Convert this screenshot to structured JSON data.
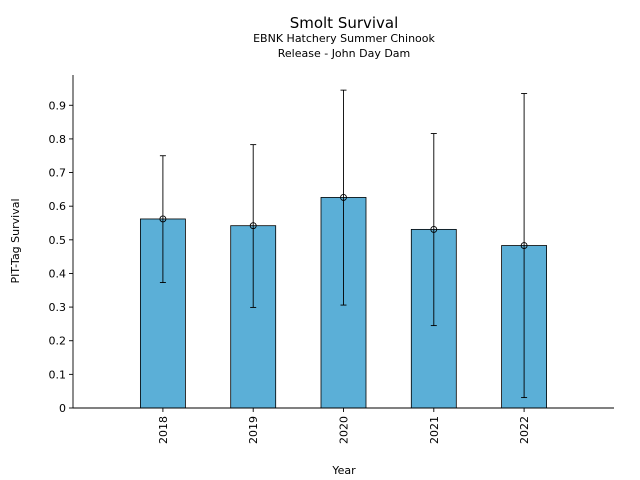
{
  "chart_data": {
    "type": "bar",
    "title": "Smolt Survival",
    "subtitle_lines": [
      "EBNK Hatchery Summer Chinook",
      "Release - John Day Dam"
    ],
    "xlabel": "Year",
    "ylabel": "PIT-Tag Survival",
    "categories": [
      "2018",
      "2019",
      "2020",
      "2021",
      "2022"
    ],
    "values": [
      0.562,
      0.542,
      0.626,
      0.531,
      0.483
    ],
    "error_low": [
      0.373,
      0.299,
      0.306,
      0.245,
      0.031
    ],
    "error_high": [
      0.75,
      0.783,
      0.945,
      0.816,
      0.935
    ],
    "ylim": [
      0,
      0.99
    ],
    "yticks": [
      0,
      0.1,
      0.2,
      0.3,
      0.4,
      0.5,
      0.6,
      0.7,
      0.8,
      0.9
    ],
    "ytick_labels": [
      "0",
      "0.1",
      "0.2",
      "0.3",
      "0.4",
      "0.5",
      "0.6",
      "0.7",
      "0.8",
      "0.9"
    ],
    "grid": false,
    "legend": "none",
    "bar_color": "#5bafd7",
    "edge_color": "#000000"
  }
}
